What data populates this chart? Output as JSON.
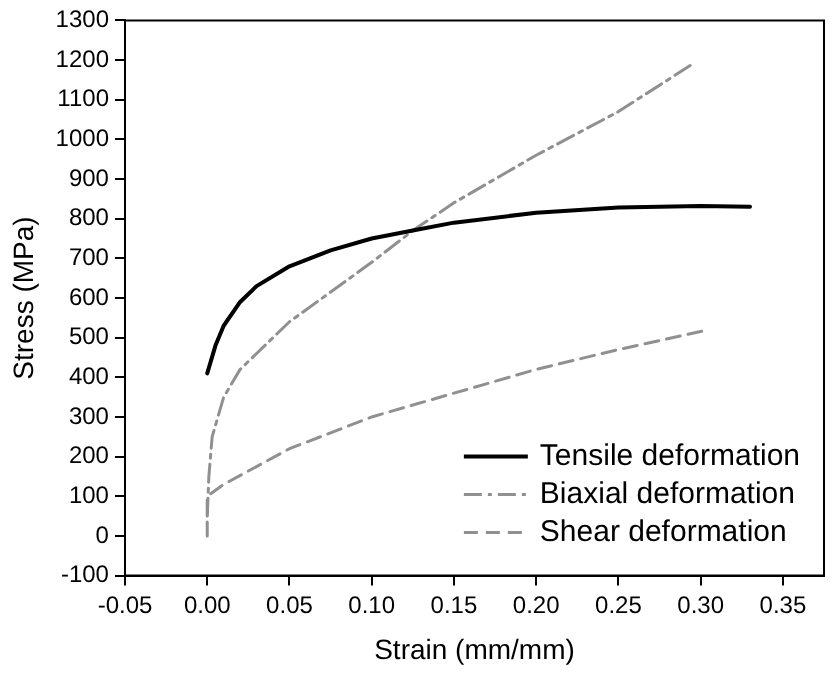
{
  "chart_data": {
    "type": "line",
    "xlabel": "Strain (mm/mm)",
    "ylabel": "Stress (MPa)",
    "xlim": [
      -0.05,
      0.375
    ],
    "xticks": [
      {
        "value": -0.05,
        "label": "-0.05"
      },
      {
        "value": 0,
        "label": "0.00"
      },
      {
        "value": 0.05,
        "label": "0.05"
      },
      {
        "value": 0.1,
        "label": "0.10"
      },
      {
        "value": 0.15,
        "label": "0.15"
      },
      {
        "value": 0.2,
        "label": "0.20"
      },
      {
        "value": 0.25,
        "label": "0.25"
      },
      {
        "value": 0.3,
        "label": "0.30"
      },
      {
        "value": 0.35,
        "label": "0.35"
      }
    ],
    "ylim": [
      -100,
      1300
    ],
    "yticks": [
      -100,
      0,
      100,
      200,
      300,
      400,
      500,
      600,
      700,
      800,
      900,
      1000,
      1100,
      1200,
      1300
    ],
    "grid": false,
    "legend": "bottom right",
    "marker": "none",
    "series": [
      {
        "name": "Tensile deformation",
        "color": "#000000",
        "line_style": "solid",
        "x": [
          0,
          0.005,
          0.01,
          0.02,
          0.03,
          0.05,
          0.075,
          0.1,
          0.125,
          0.15,
          0.2,
          0.25,
          0.3,
          0.33
        ],
        "values": [
          410,
          480,
          530,
          590,
          630,
          680,
          720,
          750,
          770,
          790,
          815,
          828,
          832,
          830
        ]
      },
      {
        "name": "Biaxial deformation",
        "color": "#909090",
        "line_style": "dashdot",
        "x": [
          0,
          0.001,
          0.003,
          0.01,
          0.02,
          0.05,
          0.1,
          0.125,
          0.15,
          0.2,
          0.25,
          0.295
        ],
        "values": [
          50,
          150,
          250,
          350,
          420,
          540,
          690,
          770,
          840,
          960,
          1070,
          1190
        ]
      },
      {
        "name": "Shear deformation",
        "color": "#909090",
        "line_style": "dashed",
        "x": [
          0,
          0,
          0.01,
          0.05,
          0.1,
          0.15,
          0.2,
          0.25,
          0.305
        ],
        "values": [
          0,
          100,
          130,
          220,
          300,
          360,
          420,
          470,
          520
        ]
      }
    ]
  }
}
